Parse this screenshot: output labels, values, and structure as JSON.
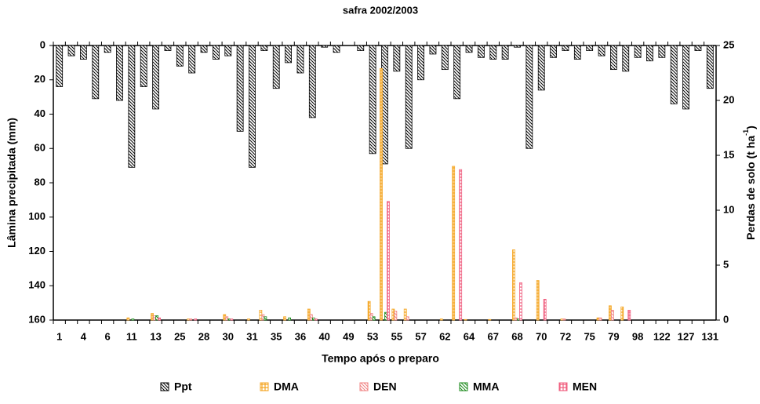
{
  "chart_data": {
    "type": "bar",
    "title": "safra 2002/2003",
    "xlabel": "Tempo após o preparo",
    "ylabel": "Lâmina precipitada (mm)",
    "y2label": {
      "text": "Perdas de solo (t ha",
      "sup": "-1",
      "end": ")"
    },
    "categories": [
      "1",
      null,
      "4",
      null,
      "6",
      null,
      "11",
      null,
      "13",
      null,
      "25",
      null,
      "28",
      null,
      "30",
      null,
      "31",
      null,
      "35",
      null,
      "36",
      null,
      "40",
      null,
      "49",
      null,
      "53",
      null,
      "55",
      null,
      "57",
      null,
      "62",
      null,
      "64",
      null,
      "67",
      null,
      "68",
      null,
      "70",
      null,
      "72",
      null,
      "75",
      null,
      "79",
      null,
      "98",
      null,
      "122",
      null,
      "127",
      null,
      "131"
    ],
    "ylim": [
      0,
      160
    ],
    "yticks": [
      0,
      20,
      40,
      60,
      80,
      100,
      120,
      140,
      160
    ],
    "y_inverted": true,
    "y2lim": [
      0,
      25
    ],
    "y2ticks": [
      0,
      5,
      10,
      15,
      20,
      25
    ],
    "legend": "bottom",
    "series": [
      {
        "name": "Ppt",
        "color": "#000000",
        "pattern": "diagonal",
        "axis": "y",
        "values": [
          24,
          6,
          8,
          31,
          4,
          32,
          71,
          24,
          37,
          3,
          12,
          16,
          4,
          8,
          6,
          50,
          71,
          3,
          25,
          10,
          16,
          42,
          1,
          4,
          0,
          3,
          63,
          69,
          15,
          60,
          20,
          5,
          14,
          31,
          4,
          7,
          8,
          8,
          1,
          60,
          26,
          7,
          3,
          8,
          3,
          6,
          14,
          15,
          7,
          9,
          7,
          34,
          37,
          3,
          25
        ]
      },
      {
        "name": "DMA",
        "color": "#f5a623",
        "pattern": "grid",
        "axis": "y2",
        "values": [
          0,
          0,
          0,
          0,
          0,
          0,
          0.2,
          0,
          0.6,
          0,
          0,
          0.1,
          0,
          0,
          0.5,
          0,
          0.1,
          0.9,
          0,
          0.3,
          0,
          1.0,
          0,
          0,
          0,
          0,
          1.7,
          22.9,
          1.0,
          1.0,
          0,
          0,
          0.1,
          14.0,
          0.05,
          0,
          0.05,
          0,
          6.4,
          0,
          3.6,
          0,
          0.1,
          0,
          0,
          0.2,
          1.3,
          1.2,
          0,
          0,
          0,
          0,
          0,
          0,
          0
        ]
      },
      {
        "name": "DEN",
        "color": "#f08080",
        "pattern": "diagonal",
        "axis": "y2",
        "values": [
          0,
          0,
          0,
          0,
          0,
          0,
          0,
          0,
          0.4,
          0,
          0,
          0.1,
          0,
          0,
          0.3,
          0,
          0,
          0.5,
          0,
          0,
          0,
          0.5,
          0,
          0,
          0,
          0,
          0.6,
          0,
          0.8,
          0.3,
          0,
          0,
          0,
          0,
          0,
          0,
          0,
          0,
          0.2,
          0,
          0,
          0,
          0.1,
          0,
          0,
          0.2,
          0.9,
          0,
          0,
          0,
          0,
          0,
          0,
          0,
          0
        ]
      },
      {
        "name": "MMA",
        "color": "#1a8a1a",
        "pattern": "diagonal",
        "axis": "y2",
        "values": [
          0,
          0,
          0,
          0,
          0,
          0,
          0.1,
          0,
          0.4,
          0,
          0,
          0,
          0,
          0,
          0.1,
          0,
          0,
          0.3,
          0,
          0.2,
          0,
          0.2,
          0,
          0,
          0,
          0,
          0.3,
          0.7,
          0,
          0,
          0,
          0,
          0,
          0,
          0,
          0,
          0,
          0,
          0.1,
          0,
          0,
          0,
          0,
          0,
          0,
          0,
          0,
          0,
          0,
          0,
          0,
          0,
          0,
          0,
          0
        ]
      },
      {
        "name": "MEN",
        "color": "#f06080",
        "pattern": "grid",
        "axis": "y2",
        "values": [
          0,
          0,
          0,
          0,
          0,
          0,
          0,
          0,
          0.2,
          0,
          0,
          0.1,
          0,
          0,
          0.1,
          0,
          0,
          0,
          0,
          0,
          0,
          0.1,
          0,
          0,
          0,
          0,
          0,
          10.8,
          0,
          0,
          0,
          0,
          0,
          13.7,
          0,
          0,
          0,
          0,
          3.4,
          0,
          1.9,
          0,
          0,
          0,
          0,
          0,
          0,
          0.9,
          0,
          0,
          0,
          0,
          0,
          0,
          0
        ]
      }
    ]
  }
}
